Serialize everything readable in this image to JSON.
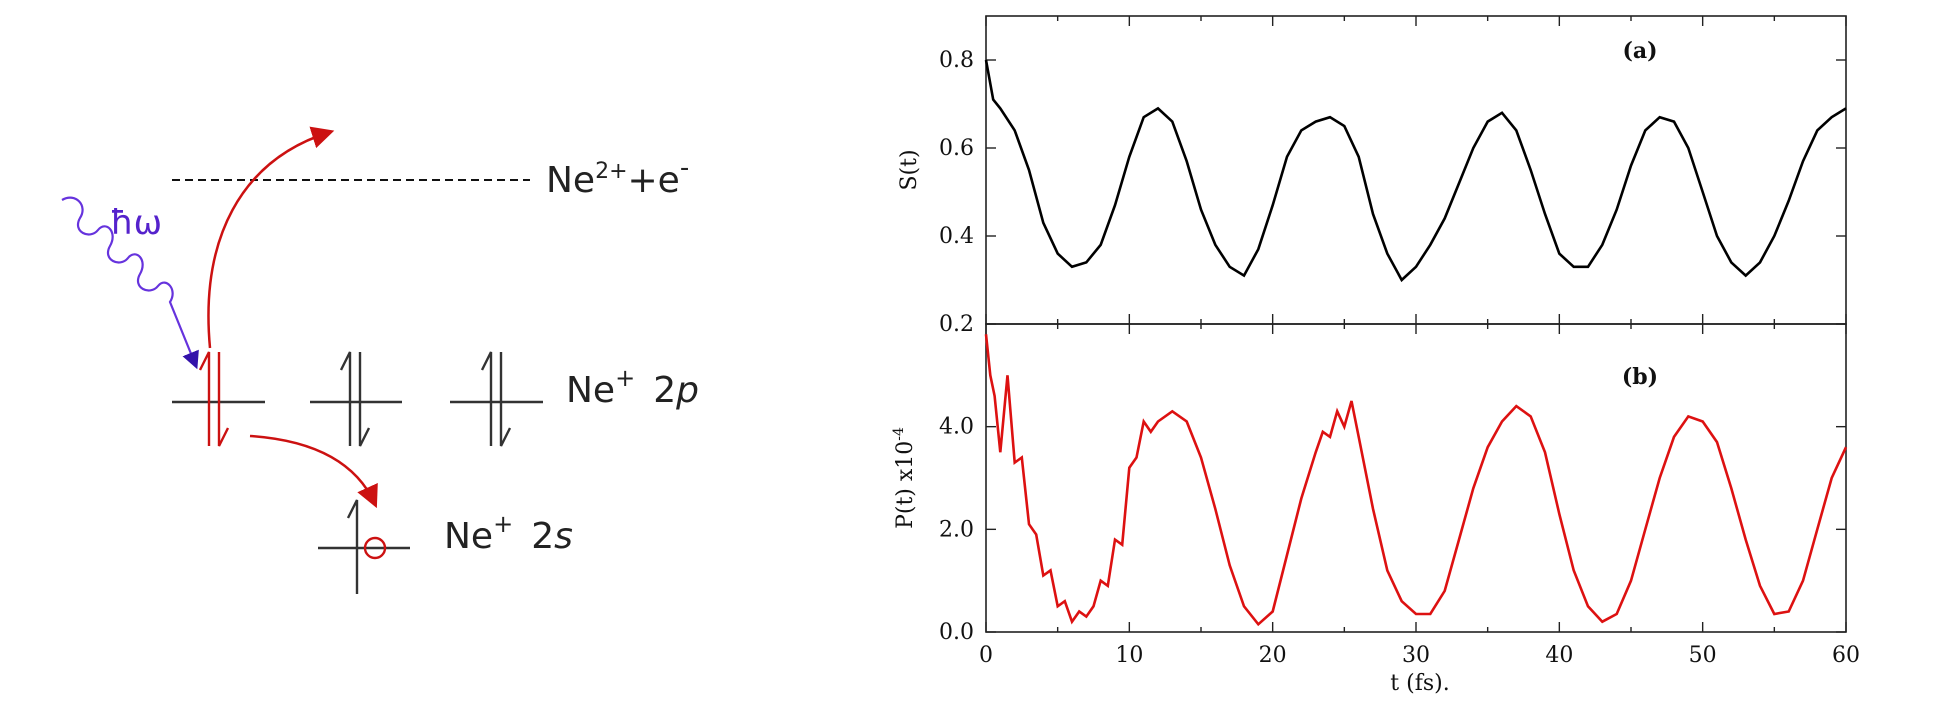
{
  "diagram": {
    "photon": {
      "label": "ħω"
    },
    "continuum": {
      "base": "Ne",
      "charge": "2+",
      "join": "+e",
      "electron_charge": "-"
    },
    "level_2p": {
      "base": "Ne",
      "charge": "+",
      "orbital_num": "2",
      "orbital_letter": "p"
    },
    "level_2s": {
      "base": "Ne",
      "charge": "+",
      "orbital_num": "2",
      "orbital_letter": "s"
    },
    "colors": {
      "photon": "#5522cc",
      "transition": "#cc1111",
      "level": "#333333",
      "continuum_line": "#111111"
    },
    "icons": [
      "wavy-photon-arrow",
      "ionization-arrow",
      "hole-transfer-arrow",
      "spin-up-arrow",
      "spin-down-arrow",
      "hole-circle"
    ]
  },
  "chart_data": [
    {
      "type": "line",
      "panel_label": "(a)",
      "ylabel": "S(t)",
      "xlim": [
        0,
        60
      ],
      "ylim": [
        0.2,
        0.9
      ],
      "yticks": [
        "0.2",
        "0.4",
        "0.6",
        "0.8"
      ],
      "ytick_values": [
        0.2,
        0.4,
        0.6,
        0.8
      ],
      "line_color": "#000000",
      "series": [
        {
          "x": [
            0,
            0.5,
            1,
            2,
            3,
            4,
            5,
            6,
            7,
            8,
            9,
            10,
            11,
            12,
            13,
            14,
            15,
            16,
            17,
            18,
            19,
            20,
            21,
            22,
            23,
            24,
            25,
            26,
            27,
            28,
            29,
            30,
            31,
            32,
            33,
            34,
            35,
            36,
            37,
            38,
            39,
            40,
            41,
            42,
            43,
            44,
            45,
            46,
            47,
            48,
            49,
            50,
            51,
            52,
            53,
            54,
            55,
            56,
            57,
            58,
            59,
            60
          ],
          "y": [
            0.8,
            0.71,
            0.69,
            0.64,
            0.55,
            0.43,
            0.36,
            0.33,
            0.34,
            0.38,
            0.47,
            0.58,
            0.67,
            0.69,
            0.66,
            0.57,
            0.46,
            0.38,
            0.33,
            0.31,
            0.37,
            0.47,
            0.58,
            0.64,
            0.66,
            0.67,
            0.65,
            0.58,
            0.45,
            0.36,
            0.3,
            0.33,
            0.38,
            0.44,
            0.52,
            0.6,
            0.66,
            0.68,
            0.64,
            0.55,
            0.45,
            0.36,
            0.33,
            0.33,
            0.38,
            0.46,
            0.56,
            0.64,
            0.67,
            0.66,
            0.6,
            0.5,
            0.4,
            0.34,
            0.31,
            0.34,
            0.4,
            0.48,
            0.57,
            0.64,
            0.67,
            0.69
          ]
        }
      ]
    },
    {
      "type": "line",
      "panel_label": "(b)",
      "ylabel": "P(t) x10",
      "ylabel_exponent": "-4",
      "xlabel": "t (fs).",
      "xlim": [
        0,
        60
      ],
      "ylim": [
        0,
        6.0
      ],
      "xticks": [
        "0",
        "10",
        "20",
        "30",
        "40",
        "50",
        "60"
      ],
      "xtick_values": [
        0,
        10,
        20,
        30,
        40,
        50,
        60
      ],
      "yticks": [
        "0.0",
        "2.0",
        "4.0"
      ],
      "ytick_values": [
        0,
        2,
        4
      ],
      "line_color": "#dd1111",
      "series": [
        {
          "x": [
            0,
            0.3,
            0.6,
            1,
            1.5,
            2,
            2.5,
            3,
            3.5,
            4,
            4.5,
            5,
            5.5,
            6,
            6.5,
            7,
            7.5,
            8,
            8.5,
            9,
            9.5,
            10,
            10.5,
            11,
            11.5,
            12,
            13,
            14,
            15,
            16,
            17,
            18,
            19,
            20,
            21,
            22,
            23,
            23.5,
            24,
            24.5,
            25,
            25.5,
            26,
            27,
            28,
            29,
            30,
            31,
            32,
            33,
            34,
            35,
            36,
            37,
            38,
            39,
            40,
            41,
            42,
            43,
            44,
            45,
            46,
            47,
            48,
            49,
            50,
            51,
            52,
            53,
            54,
            55,
            56,
            57,
            58,
            59,
            60
          ],
          "y": [
            5.8,
            5.0,
            4.6,
            3.5,
            5.0,
            3.3,
            3.4,
            2.1,
            1.9,
            1.1,
            1.2,
            0.5,
            0.6,
            0.2,
            0.4,
            0.3,
            0.5,
            1.0,
            0.9,
            1.8,
            1.7,
            3.2,
            3.4,
            4.1,
            3.9,
            4.1,
            4.3,
            4.1,
            3.4,
            2.4,
            1.3,
            0.5,
            0.15,
            0.4,
            1.5,
            2.6,
            3.5,
            3.9,
            3.8,
            4.3,
            4.0,
            4.5,
            3.8,
            2.4,
            1.2,
            0.6,
            0.35,
            0.35,
            0.8,
            1.8,
            2.8,
            3.6,
            4.1,
            4.4,
            4.2,
            3.5,
            2.3,
            1.2,
            0.5,
            0.2,
            0.35,
            1.0,
            2.0,
            3.0,
            3.8,
            4.2,
            4.1,
            3.7,
            2.8,
            1.8,
            0.9,
            0.35,
            0.4,
            1.0,
            2.0,
            3.0,
            3.6
          ]
        }
      ]
    }
  ]
}
